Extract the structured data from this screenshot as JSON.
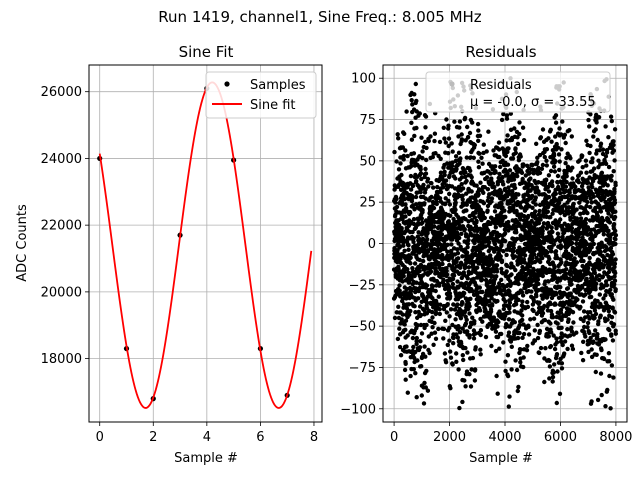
{
  "suptitle": "Run 1419, channel1, Sine Freq.: 8.005 MHz",
  "chart_data": [
    {
      "type": "scatter",
      "title": "Sine Fit",
      "xlabel": "Sample #",
      "ylabel": "ADC Counts",
      "xlim": [
        -0.4,
        8.3
      ],
      "ylim": [
        16100,
        26800
      ],
      "xticks": [
        0,
        2,
        4,
        6,
        8
      ],
      "yticks": [
        18000,
        20000,
        22000,
        24000,
        26000
      ],
      "grid": true,
      "legend_position": "top-right",
      "series": [
        {
          "name": "Samples",
          "kind": "scatter",
          "color": "#000000",
          "x": [
            0,
            1,
            2,
            3,
            4,
            5,
            6,
            7
          ],
          "y": [
            24000,
            18300,
            16800,
            21700,
            26100,
            23950,
            18300,
            16900
          ]
        },
        {
          "name": "Sine fit",
          "kind": "line",
          "color": "#ff0000",
          "x_range": [
            0,
            7.9
          ],
          "offset": 21400,
          "amplitude": 4880,
          "period": 4.97,
          "phase_peak_x": 4.2
        }
      ]
    },
    {
      "type": "scatter",
      "title": "Residuals",
      "xlabel": "Sample #",
      "xlim": [
        -400,
        8400
      ],
      "ylim": [
        -108,
        108
      ],
      "xticks": [
        0,
        2000,
        4000,
        6000,
        8000
      ],
      "yticks": [
        -100,
        -75,
        -50,
        -25,
        0,
        25,
        50,
        75,
        100
      ],
      "grid": true,
      "legend_position": "top-right",
      "series": [
        {
          "name": "Residuals",
          "kind": "scatter",
          "color": "#000000",
          "n_points": 8000,
          "mu": -0.0,
          "sigma": 33.55,
          "envelope_period": 1650,
          "max_abs": 100
        }
      ],
      "legend_labels": [
        "Residuals",
        "μ = -0.0, σ = 33.55"
      ]
    }
  ]
}
